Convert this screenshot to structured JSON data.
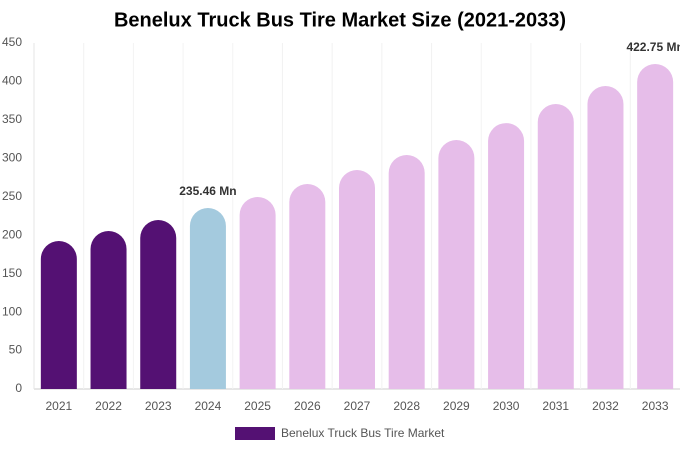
{
  "chart_data": {
    "type": "bar",
    "title": "Benelux Truck Bus Tire Market Size (2021-2033)",
    "categories": [
      "2021",
      "2022",
      "2023",
      "2024",
      "2025",
      "2026",
      "2027",
      "2028",
      "2029",
      "2030",
      "2031",
      "2032",
      "2033"
    ],
    "series": [
      {
        "name": "Benelux Truck Bus Tire Market",
        "color": "#541173",
        "values": [
          192.5,
          205.5,
          219.8,
          235.46,
          249.7,
          266.6,
          284.8,
          304.3,
          323.8,
          345.9,
          370.6,
          394,
          422.75
        ],
        "value_labels": [
          null,
          null,
          null,
          "235.46 Mn",
          null,
          null,
          null,
          null,
          null,
          null,
          null,
          null,
          "422.75 Mn"
        ],
        "colors": [
          "#541173",
          "#541173",
          "#541173",
          "#a4cade",
          "#e6bde9",
          "#e6bde9",
          "#e6bde9",
          "#e6bde9",
          "#e6bde9",
          "#e6bde9",
          "#e6bde9",
          "#e6bde9",
          "#e6bde9"
        ]
      }
    ],
    "ylim": [
      0,
      450
    ],
    "yticks": [
      0,
      50,
      100,
      150,
      200,
      250,
      300,
      350,
      400,
      450
    ],
    "grid": false
  }
}
